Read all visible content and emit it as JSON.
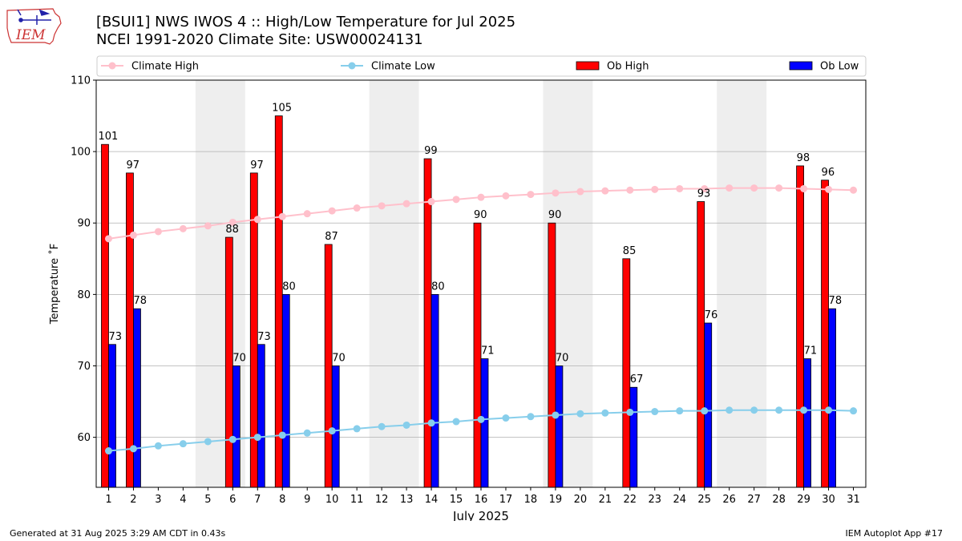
{
  "header": {
    "title_line1": "[BSUI1] NWS IWOS 4 :: High/Low Temperature for Jul 2025",
    "title_line2": "NCEI 1991-2020 Climate Site: USW00024131",
    "logo_text": "IEM"
  },
  "footer": {
    "generated": "Generated at 31 Aug 2025 3:29 AM CDT in 0.43s",
    "app": "IEM Autoplot App #17"
  },
  "colors": {
    "climate_high": "#ffc0cb",
    "climate_low": "#87ceeb",
    "ob_high": "#ff0000",
    "ob_low": "#0000ff",
    "weekend": "#eeeeee",
    "grid": "#b0b0b0"
  },
  "chart_data": {
    "type": "bar",
    "xlabel": "July 2025",
    "ylabel": "Temperature ˚F",
    "ylim": [
      53,
      110
    ],
    "yticks": [
      60,
      70,
      80,
      90,
      100,
      110
    ],
    "grid": "horizontal",
    "legend_position": "top",
    "days": [
      1,
      2,
      3,
      4,
      5,
      6,
      7,
      8,
      9,
      10,
      11,
      12,
      13,
      14,
      15,
      16,
      17,
      18,
      19,
      20,
      21,
      22,
      23,
      24,
      25,
      26,
      27,
      28,
      29,
      30,
      31
    ],
    "weekend_spans": [
      [
        5,
        6
      ],
      [
        12,
        13
      ],
      [
        19,
        20
      ],
      [
        26,
        27
      ]
    ],
    "series": [
      {
        "name": "Climate High",
        "kind": "line",
        "values": [
          87.8,
          88.3,
          88.8,
          89.2,
          89.6,
          90.1,
          90.5,
          90.9,
          91.3,
          91.7,
          92.1,
          92.4,
          92.7,
          93.0,
          93.3,
          93.6,
          93.8,
          94.0,
          94.2,
          94.4,
          94.5,
          94.6,
          94.7,
          94.8,
          94.8,
          94.9,
          94.9,
          94.9,
          94.8,
          94.7,
          94.6
        ]
      },
      {
        "name": "Climate Low",
        "kind": "line",
        "values": [
          58.1,
          58.4,
          58.8,
          59.1,
          59.4,
          59.7,
          60.0,
          60.3,
          60.6,
          60.9,
          61.2,
          61.5,
          61.7,
          62.0,
          62.2,
          62.5,
          62.7,
          62.9,
          63.1,
          63.3,
          63.4,
          63.5,
          63.6,
          63.7,
          63.7,
          63.8,
          63.8,
          63.8,
          63.8,
          63.8,
          63.7
        ]
      },
      {
        "name": "Ob High",
        "kind": "bar",
        "values": [
          101,
          97,
          null,
          null,
          null,
          88,
          97,
          105,
          null,
          87,
          null,
          null,
          null,
          99,
          null,
          90,
          null,
          null,
          90,
          null,
          null,
          85,
          null,
          null,
          93,
          null,
          null,
          null,
          98,
          96,
          null
        ]
      },
      {
        "name": "Ob Low",
        "kind": "bar",
        "values": [
          73,
          78,
          null,
          null,
          null,
          70,
          73,
          80,
          null,
          70,
          null,
          null,
          null,
          80,
          null,
          71,
          null,
          null,
          70,
          null,
          null,
          67,
          null,
          null,
          76,
          null,
          null,
          null,
          71,
          78,
          null
        ]
      }
    ]
  }
}
